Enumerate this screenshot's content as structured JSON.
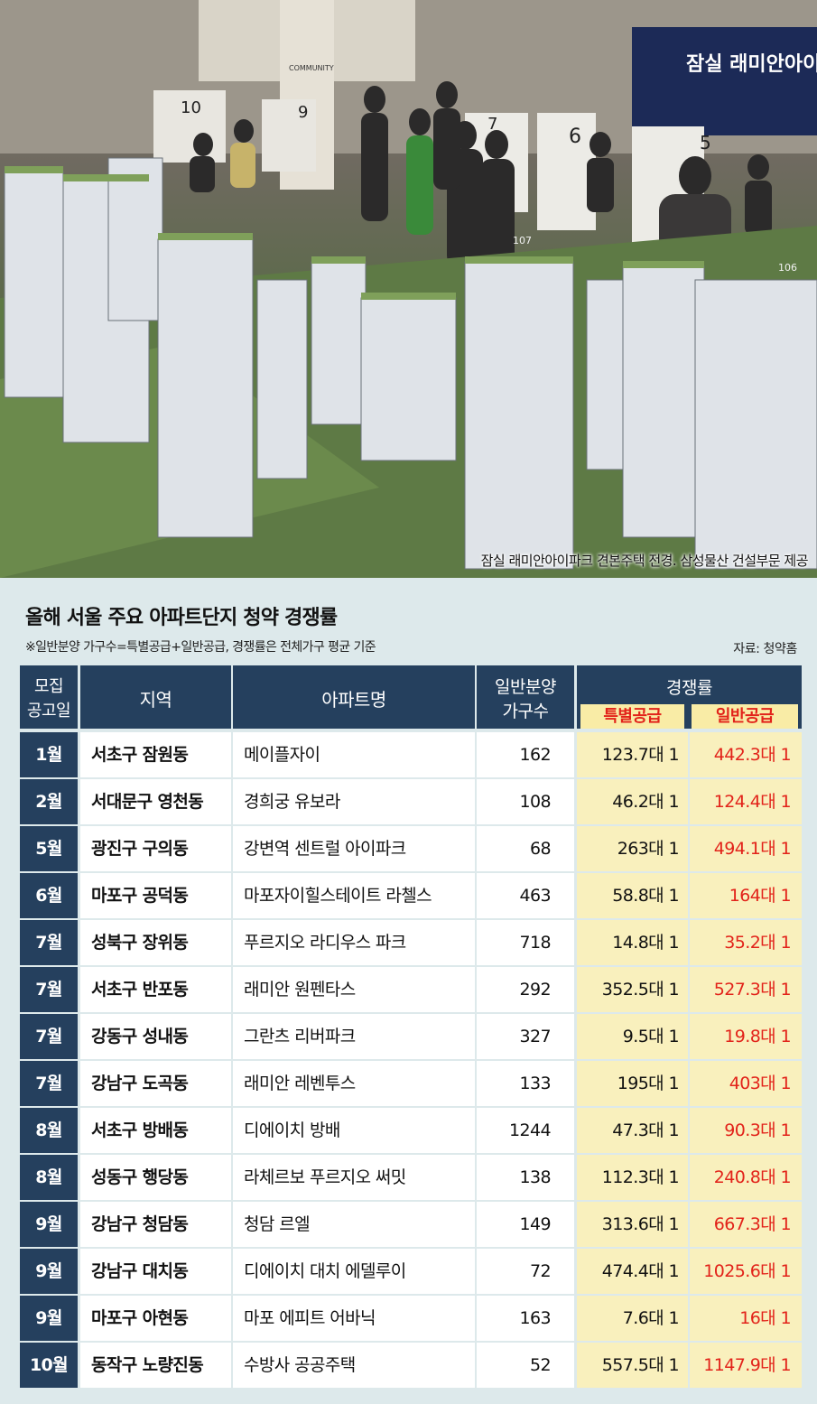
{
  "photo": {
    "caption": "잠실 래미안아이파크 견본주택 전경.  삼성물산 건설부문 제공",
    "sign_text": "잠실 래미안아이",
    "booth_numbers": [
      "10",
      "9",
      "7",
      "6",
      "5"
    ],
    "community_text": "COMMUNITY",
    "model_labels": [
      "107",
      "106"
    ]
  },
  "infographic": {
    "title": "올해 서울 주요 아파트단지 청약 경쟁률",
    "note": "※일반분양 가구수=특별공급+일반공급, 경쟁률은 전체가구 평균 기준",
    "source": "자료: 청약홈",
    "headers": {
      "month": [
        "모집",
        "공고일"
      ],
      "region": "지역",
      "apartment": "아파트명",
      "units": [
        "일반분양",
        "가구수"
      ],
      "rate": "경쟁률",
      "special": "특별공급",
      "general": "일반공급"
    },
    "rows": [
      {
        "month": "1월",
        "region": "서초구 잠원동",
        "apartment": "메이플자이",
        "units": "162",
        "special": "123.7대 1",
        "general": "442.3대 1"
      },
      {
        "month": "2월",
        "region": "서대문구 영천동",
        "apartment": "경희궁 유보라",
        "units": "108",
        "special": "46.2대 1",
        "general": "124.4대 1"
      },
      {
        "month": "5월",
        "region": "광진구 구의동",
        "apartment": "강변역 센트럴 아이파크",
        "units": "68",
        "special": "263대 1",
        "general": "494.1대 1"
      },
      {
        "month": "6월",
        "region": "마포구 공덕동",
        "apartment": "마포자이힐스테이트 라첼스",
        "units": "463",
        "special": "58.8대 1",
        "general": "164대 1"
      },
      {
        "month": "7월",
        "region": "성북구 장위동",
        "apartment": "푸르지오 라디우스 파크",
        "units": "718",
        "special": "14.8대 1",
        "general": "35.2대 1"
      },
      {
        "month": "7월",
        "region": "서초구 반포동",
        "apartment": "래미안 원펜타스",
        "units": "292",
        "special": "352.5대 1",
        "general": "527.3대 1"
      },
      {
        "month": "7월",
        "region": "강동구 성내동",
        "apartment": "그란츠 리버파크",
        "units": "327",
        "special": "9.5대 1",
        "general": "19.8대 1"
      },
      {
        "month": "7월",
        "region": "강남구 도곡동",
        "apartment": "래미안 레벤투스",
        "units": "133",
        "special": "195대 1",
        "general": "403대 1"
      },
      {
        "month": "8월",
        "region": "서초구 방배동",
        "apartment": "디에이치 방배",
        "units": "1244",
        "special": "47.3대 1",
        "general": "90.3대 1"
      },
      {
        "month": "8월",
        "region": "성동구 행당동",
        "apartment": "라체르보 푸르지오 써밋",
        "units": "138",
        "special": "112.3대 1",
        "general": "240.8대 1"
      },
      {
        "month": "9월",
        "region": "강남구 청담동",
        "apartment": "청담 르엘",
        "units": "149",
        "special": "313.6대 1",
        "general": "667.3대 1"
      },
      {
        "month": "9월",
        "region": "강남구 대치동",
        "apartment": "디에이치 대치 에델루이",
        "units": "72",
        "special": "474.4대 1",
        "general": "1025.6대 1"
      },
      {
        "month": "9월",
        "region": "마포구 아현동",
        "apartment": "마포 에피트 어바닉",
        "units": "163",
        "special": "7.6대 1",
        "general": "16대 1"
      },
      {
        "month": "10월",
        "region": "동작구 노량진동",
        "apartment": "수방사 공공주택",
        "units": "52",
        "special": "557.5대 1",
        "general": "1147.9대 1"
      }
    ]
  },
  "colors": {
    "header_navy": "#25405e",
    "highlight_yellow": "#f9f0bd",
    "accent_red": "#e2231a",
    "panel_bg": "#dde9eb"
  }
}
